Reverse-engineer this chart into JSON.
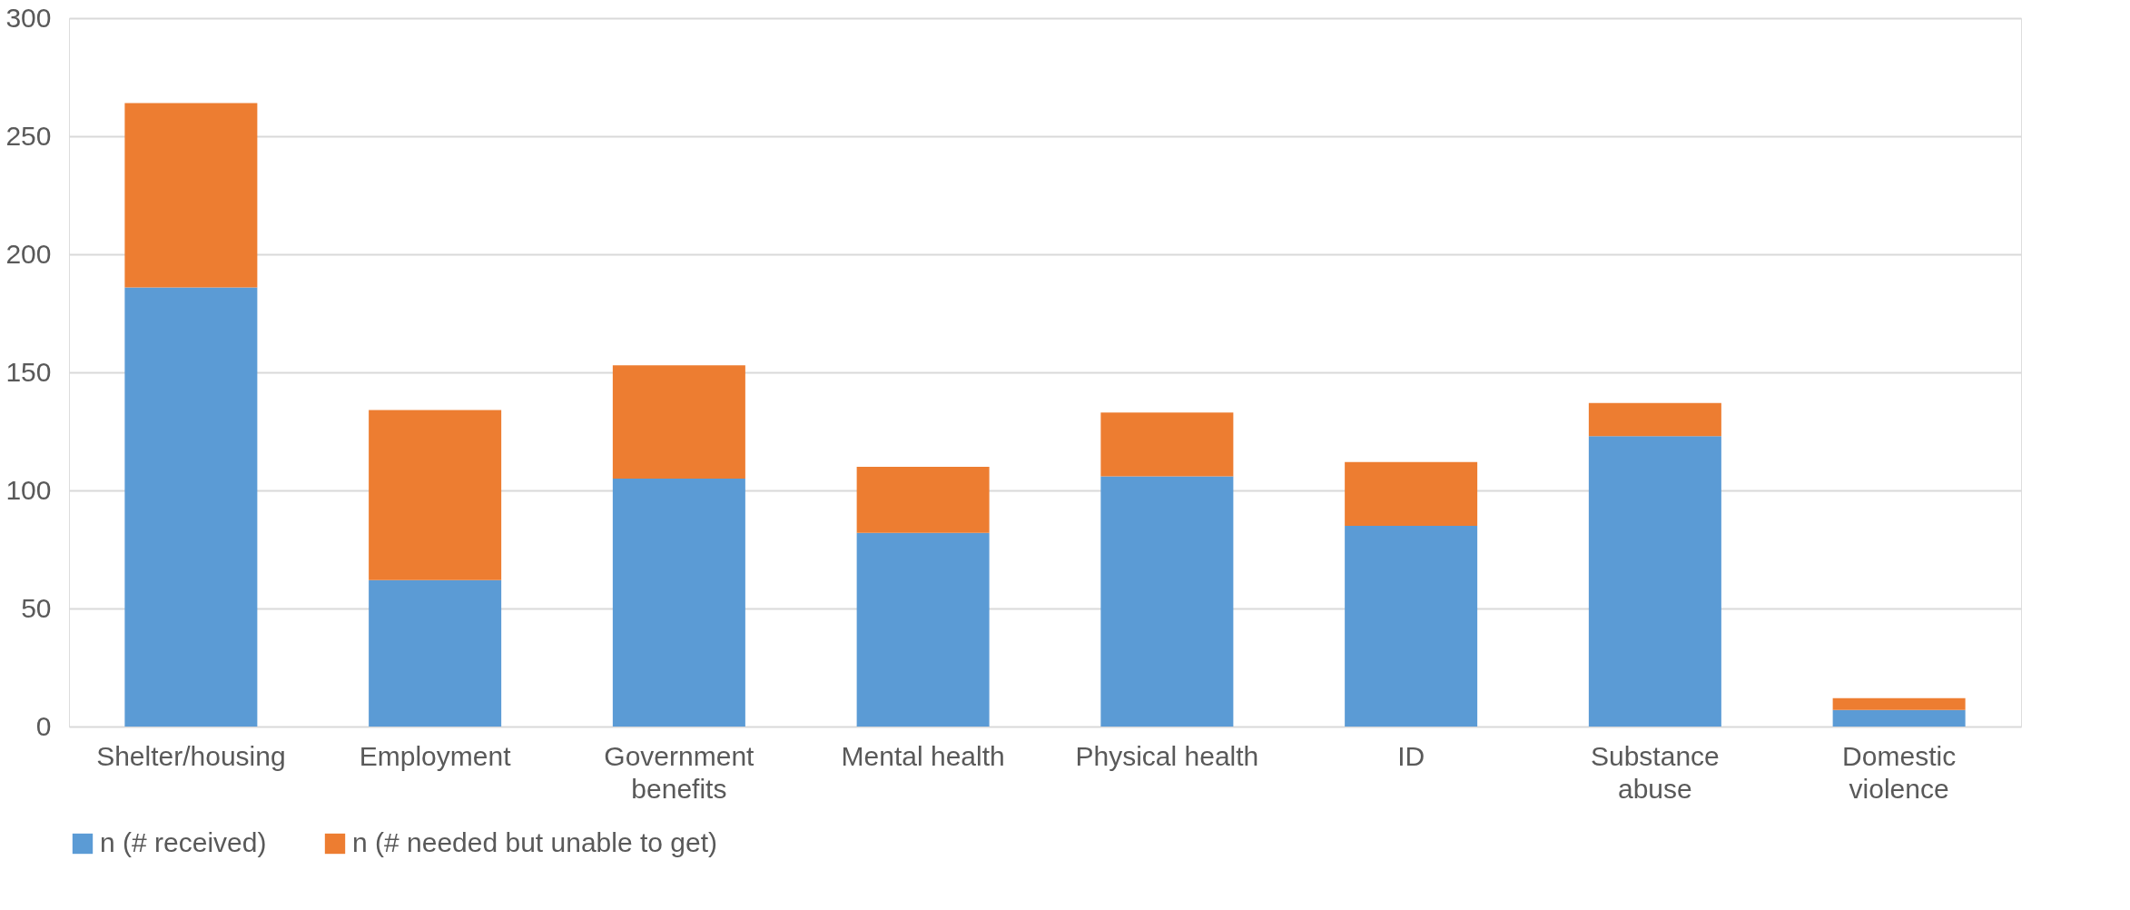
{
  "chart_data": {
    "type": "bar",
    "stacked": true,
    "categories": [
      "Shelter/housing",
      "Employment",
      "Government\nbenefits",
      "Mental health",
      "Physical health",
      "ID",
      "Substance\nabuse",
      "Domestic\nviolence"
    ],
    "series": [
      {
        "name": "n (# received)",
        "color": "#5b9bd5",
        "values": [
          186,
          62,
          105,
          82,
          106,
          85,
          123,
          7
        ]
      },
      {
        "name": "n (# needed but unable to get)",
        "color": "#ed7d31",
        "values": [
          78,
          72,
          48,
          28,
          27,
          27,
          14,
          5
        ]
      }
    ],
    "ylim": [
      0,
      300
    ],
    "yticks": [
      0,
      50,
      100,
      150,
      200,
      250,
      300
    ],
    "grid": "y",
    "legend": "bottom"
  }
}
